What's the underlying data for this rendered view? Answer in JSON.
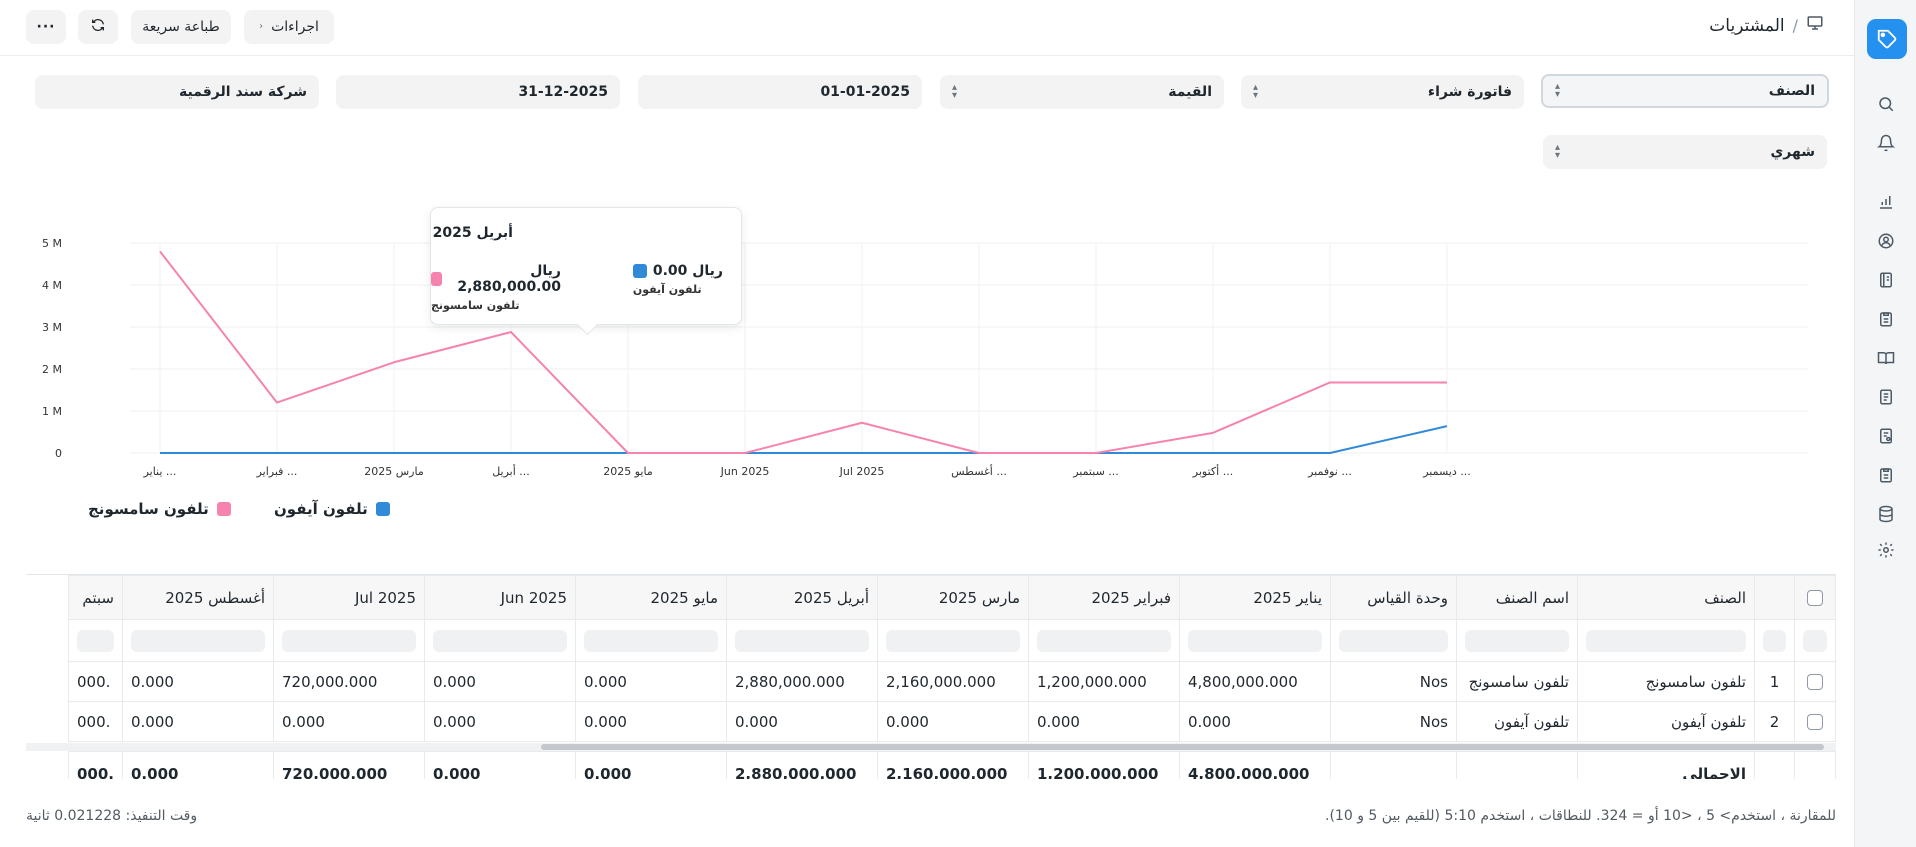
{
  "header": {
    "breadcrumb_title": "المشتريات",
    "breadcrumb_sep": "/",
    "actions_label": "اجراءات",
    "quick_print_label": "طباعة سريعة"
  },
  "filters": {
    "item": "الصنف",
    "doc_type": "فاتورة شراء",
    "measure": "القيمة",
    "from_date": "01-01-2025",
    "to_date": "31-12-2025",
    "company": "شركة سند الرقمية",
    "period": "شهري"
  },
  "tooltip": {
    "title": "أبريل 2025",
    "items": [
      {
        "value": "ريال 2,880,000.00",
        "label": "تلفون سامسونج"
      },
      {
        "value": "ريال 0.00",
        "label": "تلفون آيفون"
      }
    ]
  },
  "legend": {
    "samsung": "تلفون سامسونج",
    "iphone": "تلفون آيفون"
  },
  "chart_data": {
    "type": "line",
    "categories": [
      "يناير ...",
      "فبراير ...",
      "مارس 2025",
      "أبريل ...",
      "مايو 2025",
      "Jun 2025",
      "Jul 2025",
      "أغسطس ...",
      "سبتمبر ...",
      "أكتوبر ...",
      "نوفمبر ...",
      "ديسمبر ..."
    ],
    "y_ticks": [
      "0",
      "1 M",
      "2 M",
      "3 M",
      "4 M",
      "5 M"
    ],
    "ylim": [
      0,
      5000000
    ],
    "grid": true,
    "legend_position": "bottom-left",
    "series": [
      {
        "name": "تلفون سامسونج",
        "color": "#f683ae",
        "values": [
          4800000,
          1200000,
          2160000,
          2880000,
          0,
          0,
          720000,
          0,
          0,
          480000,
          1680000,
          1680000
        ]
      },
      {
        "name": "تلفون آيفون",
        "color": "#318ad8",
        "values": [
          0,
          0,
          0,
          0,
          0,
          0,
          0,
          0,
          0,
          0,
          0,
          640000
        ]
      }
    ]
  },
  "table": {
    "columns": {
      "item": "الصنف",
      "item_name": "اسم الصنف",
      "uom": "وحدة القياس",
      "jan": "يناير 2025",
      "feb": "فبراير 2025",
      "mar": "مارس 2025",
      "apr": "أبريل 2025",
      "may": "مايو 2025",
      "jun": "Jun 2025",
      "jul": "Jul 2025",
      "aug": "أغسطس 2025",
      "sep": "سبتم"
    },
    "rows": [
      {
        "idx": "1",
        "item": "تلفون سامسونج",
        "item_name": "تلفون سامسونج",
        "uom": "Nos",
        "jan": "4,800,000.000",
        "feb": "1,200,000.000",
        "mar": "2,160,000.000",
        "apr": "2,880,000.000",
        "may": "0.000",
        "jun": "0.000",
        "jul": "720,000.000",
        "aug": "0.000",
        "sep": ".000"
      },
      {
        "idx": "2",
        "item": "تلفون آيفون",
        "item_name": "تلفون آيفون",
        "uom": "Nos",
        "jan": "0.000",
        "feb": "0.000",
        "mar": "0.000",
        "apr": "0.000",
        "may": "0.000",
        "jun": "0.000",
        "jul": "0.000",
        "aug": "0.000",
        "sep": ".000"
      }
    ],
    "total": {
      "label": "الإجمالي",
      "jan": "4,800,000.000",
      "feb": "1,200,000.000",
      "mar": "2,160,000.000",
      "apr": "2,880,000.000",
      "may": "0.000",
      "jun": "0.000",
      "jul": "720,000.000",
      "aug": "0.000",
      "sep": ".000"
    }
  },
  "footer": {
    "note": "للمقارنة ، استخدم> 5 ، <10 أو = 324. للنطاقات ، استخدم 5:10 (للقيم بين 5 و 10).",
    "exec_time": "وقت التنفيذ: 0.021228 ثانية"
  }
}
